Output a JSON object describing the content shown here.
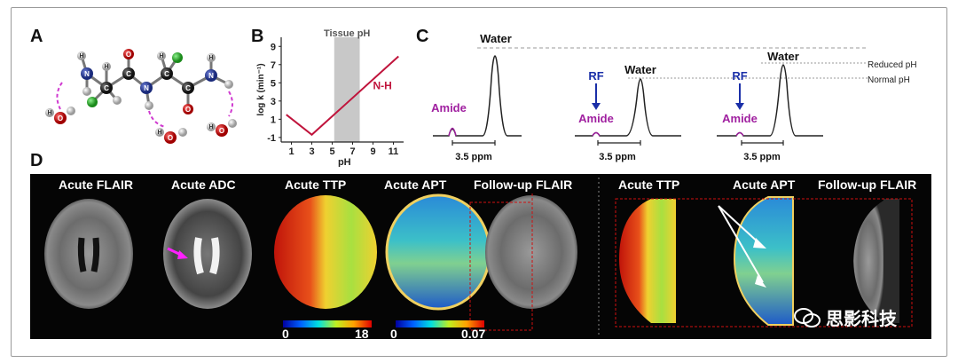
{
  "panels": {
    "a": "A",
    "b": "B",
    "c": "C",
    "d": "D"
  },
  "molecule": {
    "atom_labels": {
      "c": "C",
      "n": "N",
      "h": "H",
      "o": "O"
    }
  },
  "chart_data": {
    "type": "line",
    "title": "",
    "xlabel": "pH",
    "ylabel": "log k (min⁻¹)",
    "x_ticks": [
      1,
      3,
      5,
      7,
      9,
      11
    ],
    "y_ticks": [
      -1,
      1,
      3,
      5,
      7,
      9
    ],
    "xlim": [
      0,
      12
    ],
    "ylim": [
      -1.5,
      10
    ],
    "series": [
      {
        "name": "N-H",
        "x": [
          0.5,
          3,
          11.5
        ],
        "y": [
          1.5,
          -0.7,
          7.9
        ],
        "color": "#c0143c"
      }
    ],
    "shaded_band": {
      "label": "Tissue pH",
      "x_range": [
        5.2,
        7.7
      ]
    },
    "curve_label": "N-H"
  },
  "spectra": {
    "water_label": "Water",
    "amide_label": "Amide",
    "rf_label": "RF",
    "ppm_label": "3.5 ppm",
    "reduced_ph": "Reduced pH",
    "normal_ph": "Normal pH"
  },
  "scans": {
    "titles": [
      "Acute FLAIR",
      "Acute ADC",
      "Acute TTP",
      "Acute APT",
      "Follow-up FLAIR",
      "Acute TTP",
      "Acute APT",
      "Follow-up FLAIR"
    ],
    "ttp_scale": {
      "min": "0",
      "max": "18"
    },
    "apt_scale": {
      "min": "0",
      "max": "0.07"
    }
  },
  "watermark": {
    "text": "思影科技"
  },
  "colors": {
    "amide": "#a020a0",
    "rf": "#1a2fa8",
    "nh_line": "#c0143c",
    "band": "#c8c8c8"
  }
}
